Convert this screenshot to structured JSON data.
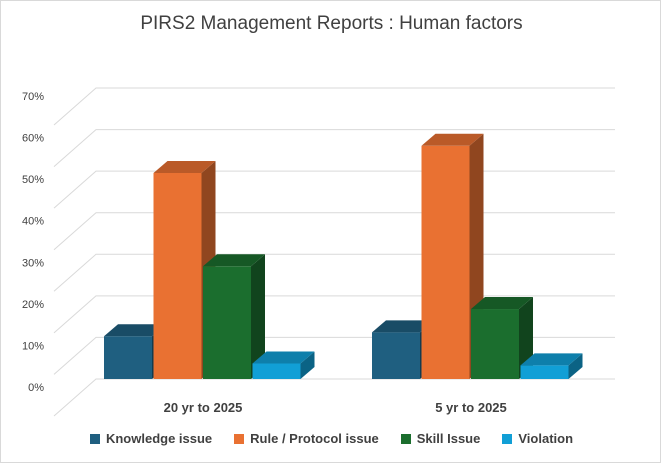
{
  "chart_data": {
    "type": "bar",
    "title": "PIRS2 Management  Reports : Human factors",
    "categories": [
      "20 yr to 2025",
      "5 yr  to 2025"
    ],
    "series": [
      {
        "name": "Knowledge issue",
        "values": [
          0.11,
          0.12
        ],
        "color": "#1f5f80"
      },
      {
        "name": "Rule / Protocol issue",
        "values": [
          0.53,
          0.6
        ],
        "color": "#e97132"
      },
      {
        "name": "Skill Issue",
        "values": [
          0.29,
          0.18
        ],
        "color": "#1b6e2e"
      },
      {
        "name": "Violation",
        "values": [
          0.04,
          0.035
        ],
        "color": "#119fd6"
      }
    ],
    "yticks": [
      "0%",
      "10%",
      "20%",
      "30%",
      "40%",
      "50%",
      "60%",
      "70%"
    ],
    "ylim": [
      0,
      0.7
    ],
    "grid": true,
    "legend_position": "bottom",
    "style": "3d-column"
  }
}
